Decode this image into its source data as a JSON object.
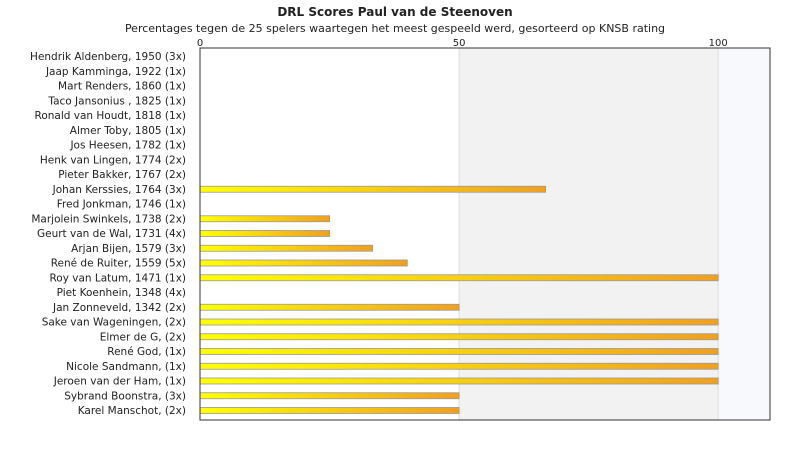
{
  "chart_data": {
    "type": "bar",
    "orientation": "horizontal",
    "title": "DRL Scores Paul van de Steenoven",
    "subtitle": "Percentages tegen de 25 spelers waartegen het meest gespeeld werd, gesorteerd op KNSB rating",
    "xlim": [
      0,
      110
    ],
    "xticks": [
      "0",
      "50",
      "100"
    ],
    "grid": true,
    "categories": [
      "Hendrik Aldenberg, 1950 (3x)",
      "Jaap Kamminga, 1922 (1x)",
      "Mart Renders, 1860 (1x)",
      "Taco Jansonius , 1825 (1x)",
      "Ronald van Houdt, 1818 (1x)",
      "Almer Toby, 1805 (1x)",
      "Jos Heesen, 1782 (1x)",
      "Henk van Lingen, 1774 (2x)",
      "Pieter Bakker, 1767 (2x)",
      "Johan Kerssies, 1764 (3x)",
      "Fred Jonkman, 1746 (1x)",
      "Marjolein Swinkels, 1738 (2x)",
      "Geurt van de Wal, 1731 (4x)",
      "Arjan Bijen, 1579 (3x)",
      "René de Ruiter, 1559 (5x)",
      "Roy van Latum, 1471 (1x)",
      "Piet Koenhein, 1348 (4x)",
      "Jan Zonneveld, 1342 (2x)",
      "Sake van Wageningen,  (2x)",
      "Elmer de G,  (2x)",
      "René God,  (1x)",
      "Nicole Sandmann,  (1x)",
      "Jeroen van der Ham,  (1x)",
      "Sybrand Boonstra,  (3x)",
      "Karel Manschot,  (2x)"
    ],
    "values": [
      0,
      0,
      0,
      0,
      0,
      0,
      0,
      0,
      0,
      66.7,
      0,
      25,
      25,
      33.3,
      40,
      100,
      0,
      50,
      100,
      100,
      100,
      100,
      100,
      50,
      50
    ],
    "colors": {
      "bar_start": "#ffff00",
      "bar_end": "#f0a020",
      "bar_border": "#999999",
      "band_a": "#ffffff",
      "band_b": "#f2f2f2",
      "band_c": "#f8f9fc",
      "frame": "#333333"
    }
  }
}
